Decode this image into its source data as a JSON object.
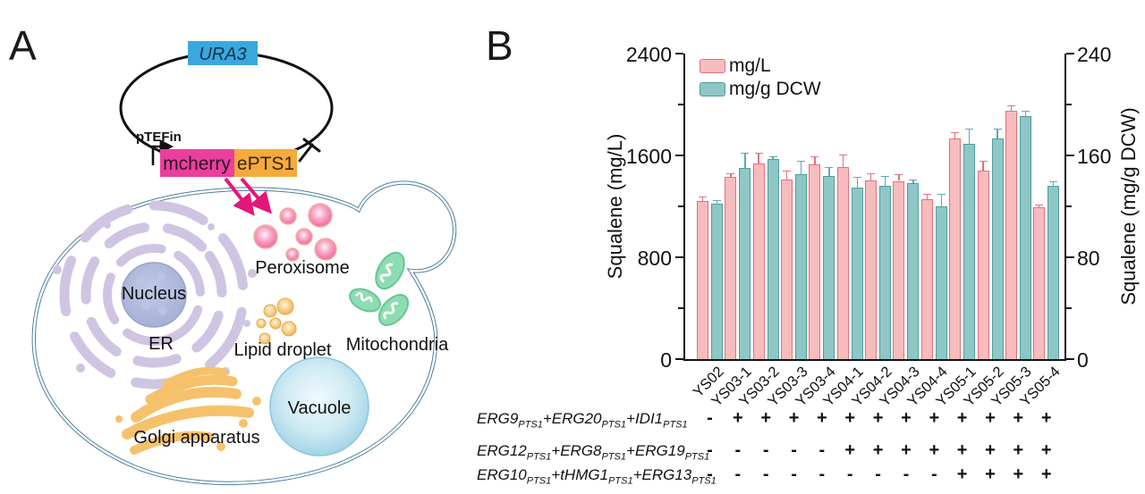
{
  "panel_a": {
    "label": "A",
    "plasmid": {
      "marker": "URA3",
      "promoter": "pTEFin",
      "gene1": "mcherry",
      "gene2": "ePTS1",
      "colors": {
        "marker_box": "#3aa8de",
        "gene1_box": "#ea3f9e",
        "gene2_box": "#f4ab3c",
        "arrow": "#e51679",
        "backbone": "#111111"
      }
    },
    "cell": {
      "outline_color": "#4e809f",
      "labels": {
        "nucleus": "Nucleus",
        "er": "ER",
        "peroxisome": "Peroxisome",
        "lipid_droplet": "Lipid droplet",
        "mitochondria": "Mitochondria",
        "vacuole": "Vacuole",
        "golgi": "Golgi apparatus"
      },
      "colors": {
        "er": "#cfc5e2",
        "nucleus": "#aab3d8",
        "peroxisome": "#ef679f",
        "lipid": "#eeb055",
        "mitochondria": "#8edcb3",
        "vacuole": "#a5d6e8",
        "golgi": "#f5c26b"
      }
    }
  },
  "panel_b": {
    "label": "B"
  },
  "chart_data": {
    "type": "bar",
    "categories": [
      "YS02",
      "YS03-1",
      "YS03-2",
      "YS03-3",
      "YS03-4",
      "YS04-1",
      "YS04-2",
      "YS04-3",
      "YS04-4",
      "YS05-1",
      "YS05-2",
      "YS05-3",
      "YS05-4"
    ],
    "series": [
      {
        "name": "mg/L",
        "axis": "left",
        "fill": "#f7bcbe",
        "border": "#e4707c",
        "error_color": "#e4707c",
        "values": [
          1240,
          1430,
          1540,
          1410,
          1530,
          1510,
          1405,
          1400,
          1255,
          1730,
          1480,
          1950,
          1195
        ],
        "errors": [
          40,
          30,
          80,
          70,
          60,
          95,
          55,
          55,
          45,
          50,
          80,
          40,
          18
        ]
      },
      {
        "name": "mg/g DCW",
        "axis": "right",
        "fill": "#8ec7c5",
        "border": "#4f9d9b",
        "error_color": "#5fa8b4",
        "values": [
          122,
          150,
          157,
          145,
          144,
          135,
          136,
          138,
          120,
          169,
          173,
          191,
          136
        ],
        "errors": [
          3,
          12,
          2,
          11,
          7,
          8,
          8,
          3,
          10,
          12,
          8,
          4,
          4
        ]
      }
    ],
    "left_axis": {
      "label": "Squalene (mg/L)",
      "ticks": [
        0,
        800,
        1600,
        2400
      ],
      "minor": [
        400,
        1200,
        2000
      ],
      "lim": [
        0,
        2400
      ]
    },
    "right_axis": {
      "label": "Squalene (mg/g DCW)",
      "ticks": [
        0,
        80,
        160,
        240
      ],
      "minor": [
        40,
        120,
        200
      ],
      "lim": [
        0,
        240
      ]
    },
    "legend": [
      "mg/L",
      "mg/g DCW"
    ],
    "legend_position": "top-left",
    "grid": false,
    "genotype_rows": [
      {
        "label": "ERG9_{PTS1}+ERG20_{PTS1}+IDI1_{PTS1}",
        "signs": [
          "-",
          "+",
          "+",
          "+",
          "+",
          "+",
          "+",
          "+",
          "+",
          "+",
          "+",
          "+",
          "+"
        ]
      },
      {
        "label": "ERG12_{PTS1}+ERG8_{PTS1}+ERG19_{PTS1}",
        "signs": [
          "-",
          "-",
          "-",
          "-",
          "-",
          "+",
          "+",
          "+",
          "+",
          "+",
          "+",
          "+",
          "+"
        ]
      },
      {
        "label": "ERG10_{PTS1}+tHMG1_{PTS1}+ERG13_{PTS1}",
        "signs": [
          "-",
          "-",
          "-",
          "-",
          "-",
          "-",
          "-",
          "-",
          "-",
          "+",
          "+",
          "+",
          "+"
        ]
      }
    ]
  }
}
